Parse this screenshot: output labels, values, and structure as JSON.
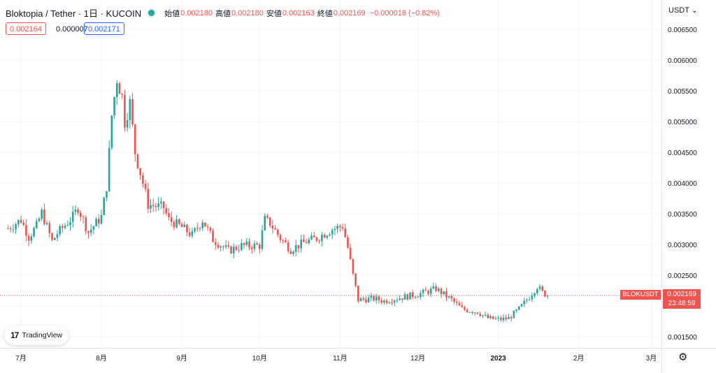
{
  "header": {
    "symbol": "Bloktopia / Tether · 1日 · KUCOIN",
    "open_label": "始値",
    "open": "0.002180",
    "high_label": "高値",
    "high": "0.002180",
    "low_label": "安値",
    "low": "0.002163",
    "close_label": "終値",
    "close": "0.002169",
    "change": "−0.000018 (−0.82%)"
  },
  "quote": {
    "bid": "0.002164",
    "spread": "0.000007",
    "ask": "0.002171"
  },
  "currency": "USDT",
  "branding": "TradingView",
  "last_price": {
    "symbol": "BLOKUSDT",
    "price": "0.002169",
    "countdown": "23:48:59"
  },
  "colors": {
    "up": "#26a69a",
    "down": "#ef5350",
    "grid": "#f0f3fa",
    "text": "#131722"
  },
  "icons": {
    "status": "market-open-dot-icon",
    "settings": "gear-icon",
    "currency_menu": "chevron-down-icon"
  },
  "chart_data": {
    "type": "candlestick",
    "y_ticks": [
      "0.006500",
      "0.006000",
      "0.005500",
      "0.005000",
      "0.004500",
      "0.004000",
      "0.003500",
      "0.003000",
      "0.002500",
      "0.002000",
      "0.001500"
    ],
    "y_tick_values": [
      0.0065,
      0.006,
      0.0055,
      0.005,
      0.0045,
      0.004,
      0.0035,
      0.003,
      0.0025,
      0.002,
      0.0015
    ],
    "x_ticks": [
      "7月",
      "8月",
      "9月",
      "10月",
      "11月",
      "12月",
      "2023",
      "2月",
      "3月"
    ],
    "x_tick_days": [
      0,
      31,
      62,
      92,
      123,
      153,
      184,
      215,
      243
    ],
    "x_day0_date": "2022-07-01",
    "ylim": [
      0.00138,
      0.00677
    ],
    "grid": true,
    "last_price_value": 0.002169,
    "close_series": [
      {
        "day": -5,
        "close": 0.00326
      },
      {
        "day": 0,
        "close": 0.0034
      },
      {
        "day": 3,
        "close": 0.00312
      },
      {
        "day": 6,
        "close": 0.0033
      },
      {
        "day": 8,
        "close": 0.00352
      },
      {
        "day": 12,
        "close": 0.00305
      },
      {
        "day": 14,
        "close": 0.00318
      },
      {
        "day": 20,
        "close": 0.00345
      },
      {
        "day": 22,
        "close": 0.0036
      },
      {
        "day": 26,
        "close": 0.0032
      },
      {
        "day": 31,
        "close": 0.00345
      },
      {
        "day": 33,
        "close": 0.00395
      },
      {
        "day": 34,
        "close": 0.0045
      },
      {
        "day": 35,
        "close": 0.0051
      },
      {
        "day": 37,
        "close": 0.0057
      },
      {
        "day": 39,
        "close": 0.0054
      },
      {
        "day": 40,
        "close": 0.005
      },
      {
        "day": 42,
        "close": 0.0053
      },
      {
        "day": 44,
        "close": 0.0045
      },
      {
        "day": 47,
        "close": 0.004
      },
      {
        "day": 49,
        "close": 0.00365
      },
      {
        "day": 55,
        "close": 0.0036
      },
      {
        "day": 57,
        "close": 0.0034
      },
      {
        "day": 62,
        "close": 0.00328
      },
      {
        "day": 66,
        "close": 0.00315
      },
      {
        "day": 70,
        "close": 0.0034
      },
      {
        "day": 74,
        "close": 0.00308
      },
      {
        "day": 80,
        "close": 0.0029
      },
      {
        "day": 85,
        "close": 0.00298
      },
      {
        "day": 92,
        "close": 0.00298
      },
      {
        "day": 94,
        "close": 0.0034
      },
      {
        "day": 96,
        "close": 0.00335
      },
      {
        "day": 100,
        "close": 0.0031
      },
      {
        "day": 104,
        "close": 0.00292
      },
      {
        "day": 110,
        "close": 0.00305
      },
      {
        "day": 114,
        "close": 0.0031
      },
      {
        "day": 120,
        "close": 0.00325
      },
      {
        "day": 124,
        "close": 0.0033
      },
      {
        "day": 126,
        "close": 0.00295
      },
      {
        "day": 128,
        "close": 0.0025
      },
      {
        "day": 130,
        "close": 0.0021
      },
      {
        "day": 136,
        "close": 0.00212
      },
      {
        "day": 140,
        "close": 0.00208
      },
      {
        "day": 148,
        "close": 0.00215
      },
      {
        "day": 154,
        "close": 0.0022
      },
      {
        "day": 160,
        "close": 0.00228
      },
      {
        "day": 166,
        "close": 0.0021
      },
      {
        "day": 170,
        "close": 0.00195
      },
      {
        "day": 176,
        "close": 0.0019
      },
      {
        "day": 180,
        "close": 0.0018
      },
      {
        "day": 184,
        "close": 0.00178
      },
      {
        "day": 188,
        "close": 0.0018
      },
      {
        "day": 192,
        "close": 0.00195
      },
      {
        "day": 196,
        "close": 0.00215
      },
      {
        "day": 199,
        "close": 0.00232
      },
      {
        "day": 201,
        "close": 0.00222
      },
      {
        "day": 203,
        "close": 0.002169
      }
    ]
  }
}
